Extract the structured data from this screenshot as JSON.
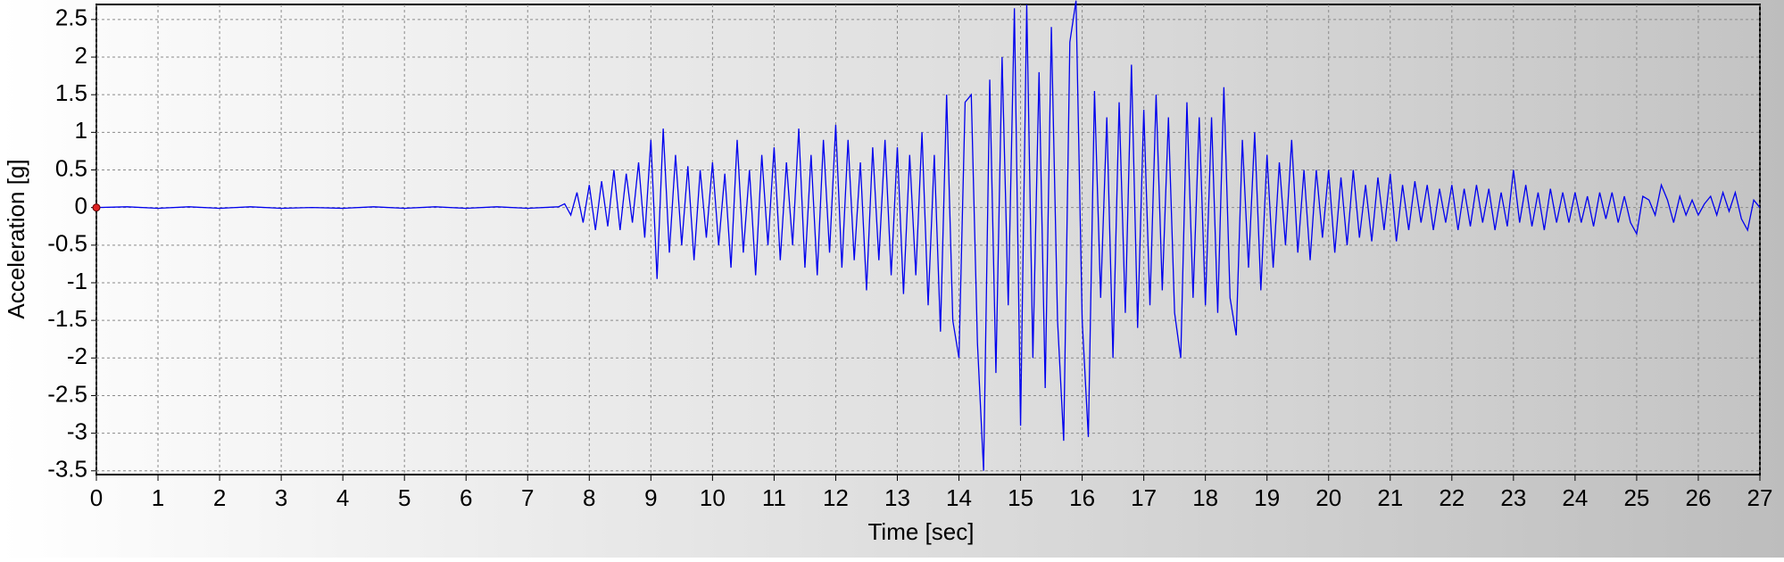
{
  "chart_data": {
    "type": "line",
    "xlabel": "Time [sec]",
    "ylabel": "Acceleration [g]",
    "x": [
      0,
      0.5,
      1,
      1.5,
      2,
      2.5,
      3,
      3.5,
      4,
      4.5,
      5,
      5.5,
      6,
      6.5,
      7,
      7.5,
      7.6,
      7.7,
      7.8,
      7.9,
      8.0,
      8.1,
      8.2,
      8.3,
      8.4,
      8.5,
      8.6,
      8.7,
      8.8,
      8.9,
      9.0,
      9.1,
      9.2,
      9.3,
      9.4,
      9.5,
      9.6,
      9.7,
      9.8,
      9.9,
      10.0,
      10.1,
      10.2,
      10.3,
      10.4,
      10.5,
      10.6,
      10.7,
      10.8,
      10.9,
      11.0,
      11.1,
      11.2,
      11.3,
      11.4,
      11.5,
      11.6,
      11.7,
      11.8,
      11.9,
      12.0,
      12.1,
      12.2,
      12.3,
      12.4,
      12.5,
      12.6,
      12.7,
      12.8,
      12.9,
      13.0,
      13.1,
      13.2,
      13.3,
      13.4,
      13.5,
      13.6,
      13.7,
      13.8,
      13.9,
      14.0,
      14.1,
      14.2,
      14.3,
      14.4,
      14.5,
      14.6,
      14.7,
      14.8,
      14.9,
      15.0,
      15.1,
      15.2,
      15.3,
      15.4,
      15.5,
      15.6,
      15.7,
      15.8,
      15.9,
      16.0,
      16.1,
      16.2,
      16.3,
      16.4,
      16.5,
      16.6,
      16.7,
      16.8,
      16.9,
      17.0,
      17.1,
      17.2,
      17.3,
      17.4,
      17.5,
      17.6,
      17.7,
      17.8,
      17.9,
      18.0,
      18.1,
      18.2,
      18.3,
      18.4,
      18.5,
      18.6,
      18.7,
      18.8,
      18.9,
      19.0,
      19.1,
      19.2,
      19.3,
      19.4,
      19.5,
      19.6,
      19.7,
      19.8,
      19.9,
      20.0,
      20.1,
      20.2,
      20.3,
      20.4,
      20.5,
      20.6,
      20.7,
      20.8,
      20.9,
      21.0,
      21.1,
      21.2,
      21.3,
      21.4,
      21.5,
      21.6,
      21.7,
      21.8,
      21.9,
      22.0,
      22.1,
      22.2,
      22.3,
      22.4,
      22.5,
      22.6,
      22.7,
      22.8,
      22.9,
      23.0,
      23.1,
      23.2,
      23.3,
      23.4,
      23.5,
      23.6,
      23.7,
      23.8,
      23.9,
      24.0,
      24.1,
      24.2,
      24.3,
      24.4,
      24.5,
      24.6,
      24.7,
      24.8,
      24.9,
      25.0,
      25.1,
      25.2,
      25.3,
      25.4,
      25.5,
      25.6,
      25.7,
      25.8,
      25.9,
      26.0,
      26.1,
      26.2,
      26.3,
      26.4,
      26.5,
      26.6,
      26.7,
      26.8,
      26.9,
      27.0
    ],
    "series": [
      {
        "color": "#0000ee",
        "values": [
          0,
          0.01,
          -0.01,
          0.01,
          -0.01,
          0.01,
          -0.01,
          0,
          -0.01,
          0.01,
          -0.01,
          0.01,
          -0.01,
          0.01,
          -0.01,
          0.01,
          0.05,
          -0.1,
          0.2,
          -0.2,
          0.3,
          -0.3,
          0.35,
          -0.25,
          0.5,
          -0.3,
          0.45,
          -0.2,
          0.6,
          -0.4,
          0.9,
          -0.95,
          1.05,
          -0.6,
          0.7,
          -0.5,
          0.55,
          -0.7,
          0.5,
          -0.4,
          0.6,
          -0.5,
          0.45,
          -0.8,
          0.9,
          -0.6,
          0.5,
          -0.9,
          0.7,
          -0.5,
          0.8,
          -0.7,
          0.6,
          -0.5,
          1.05,
          -0.8,
          0.7,
          -0.9,
          0.9,
          -0.6,
          1.1,
          -0.8,
          0.9,
          -0.7,
          0.6,
          -1.1,
          0.8,
          -0.7,
          0.9,
          -0.9,
          0.8,
          -1.15,
          0.7,
          -0.9,
          1.0,
          -1.3,
          0.7,
          -1.65,
          1.5,
          -1.5,
          -2.0,
          1.4,
          1.5,
          -1.8,
          -3.5,
          1.7,
          -2.2,
          2.0,
          -1.3,
          2.65,
          -2.9,
          2.7,
          -2.0,
          1.8,
          -2.4,
          2.4,
          -1.5,
          -3.1,
          2.2,
          2.75,
          -1.5,
          -3.05,
          1.55,
          -1.2,
          1.2,
          -2.0,
          1.4,
          -1.4,
          1.9,
          -1.6,
          1.3,
          -1.3,
          1.5,
          -1.1,
          1.2,
          -1.4,
          -2.0,
          1.4,
          -1.2,
          1.2,
          -1.3,
          1.2,
          -1.4,
          1.6,
          -1.2,
          -1.7,
          0.9,
          -0.8,
          1.0,
          -1.1,
          0.7,
          -0.8,
          0.6,
          -0.5,
          0.9,
          -0.6,
          0.5,
          -0.7,
          0.5,
          -0.4,
          0.5,
          -0.6,
          0.4,
          -0.5,
          0.5,
          -0.4,
          0.3,
          -0.45,
          0.4,
          -0.3,
          0.45,
          -0.45,
          0.3,
          -0.3,
          0.35,
          -0.2,
          0.3,
          -0.3,
          0.25,
          -0.2,
          0.3,
          -0.3,
          0.25,
          -0.25,
          0.3,
          -0.2,
          0.25,
          -0.3,
          0.2,
          -0.25,
          0.5,
          -0.2,
          0.3,
          -0.25,
          0.2,
          -0.3,
          0.25,
          -0.2,
          0.2,
          -0.2,
          0.2,
          -0.2,
          0.15,
          -0.25,
          0.2,
          -0.15,
          0.2,
          -0.2,
          0.15,
          -0.2,
          -0.35,
          0.15,
          0.1,
          -0.1,
          0.3,
          0.1,
          -0.2,
          0.15,
          -0.1,
          0.1,
          -0.1,
          0.05,
          0.15,
          -0.1,
          0.2,
          -0.05,
          0.2,
          -0.15,
          -0.3,
          0.1,
          0.0
        ]
      }
    ],
    "xlim": [
      0,
      27
    ],
    "ylim": [
      -3.55,
      2.7
    ],
    "xticks": [
      0,
      1,
      2,
      3,
      4,
      5,
      6,
      7,
      8,
      9,
      10,
      11,
      12,
      13,
      14,
      15,
      16,
      17,
      18,
      19,
      20,
      21,
      22,
      23,
      24,
      25,
      26,
      27
    ],
    "yticks": [
      -3.5,
      -3,
      -2.5,
      -2,
      -1.5,
      -1,
      -0.5,
      0,
      0.5,
      1,
      1.5,
      2,
      2.5
    ],
    "grid": true
  }
}
